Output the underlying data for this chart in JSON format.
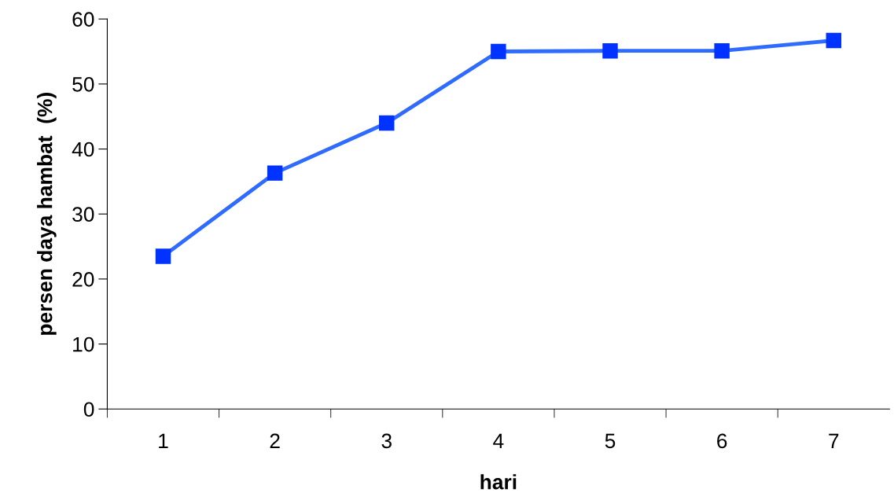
{
  "chart_data": {
    "type": "line",
    "xlabel": "hari",
    "ylabel": "persen daya hambat  (%)",
    "categories": [
      "1",
      "2",
      "3",
      "4",
      "5",
      "6",
      "7"
    ],
    "series": [
      {
        "color": "#2f6bff",
        "values": [
          23.5,
          36.3,
          44.0,
          55.0,
          55.1,
          55.1,
          56.7
        ]
      }
    ],
    "ylim": [
      0,
      60
    ],
    "yticks": [
      0,
      10,
      20,
      30,
      40,
      50,
      60
    ],
    "grid": false,
    "legend": false,
    "marker": "square",
    "line_style": "solid"
  }
}
